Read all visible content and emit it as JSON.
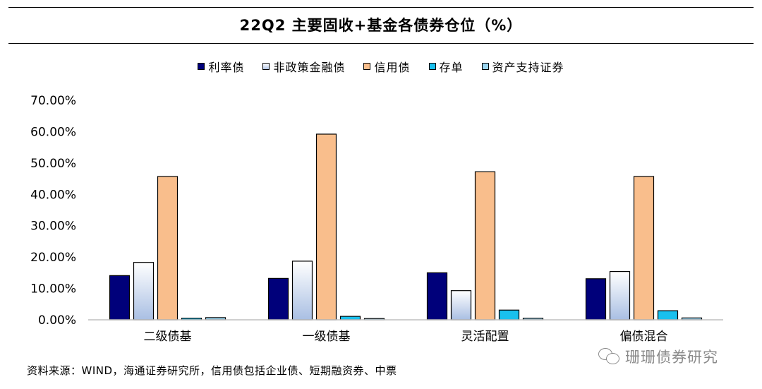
{
  "title": "22Q2 主要固收+基金各债券仓位（%）",
  "legend": [
    {
      "label": "利率债",
      "color": "#00007a"
    },
    {
      "label": "非政策金融债",
      "color": "gradient-blue"
    },
    {
      "label": "信用债",
      "color": "#f9be8c"
    },
    {
      "label": "存单",
      "color": "#19c0ee"
    },
    {
      "label": "资产支持证券",
      "color": "#9bd6f0"
    }
  ],
  "source": "资料来源：WIND，海通证券研究所，信用债包括企业债、短期融资券、中票",
  "watermark": "珊珊债券研究",
  "chart_data": {
    "type": "bar",
    "categories": [
      "二级债基",
      "一级债基",
      "灵活配置",
      "偏债混合"
    ],
    "series": [
      {
        "name": "利率债",
        "values": [
          14.1,
          13.2,
          15.0,
          13.1
        ]
      },
      {
        "name": "非政策金融债",
        "values": [
          18.3,
          18.7,
          9.3,
          15.4
        ]
      },
      {
        "name": "信用债",
        "values": [
          45.7,
          59.2,
          47.2,
          45.7
        ]
      },
      {
        "name": "存单",
        "values": [
          0.5,
          1.1,
          3.1,
          2.9
        ]
      },
      {
        "name": "资产支持证券",
        "values": [
          0.7,
          0.4,
          0.5,
          0.6
        ]
      }
    ],
    "ylim": [
      0,
      70
    ],
    "yticks": [
      "0.00%",
      "10.00%",
      "20.00%",
      "30.00%",
      "40.00%",
      "50.00%",
      "60.00%",
      "70.00%"
    ],
    "grid": false,
    "legend_position": "top"
  }
}
